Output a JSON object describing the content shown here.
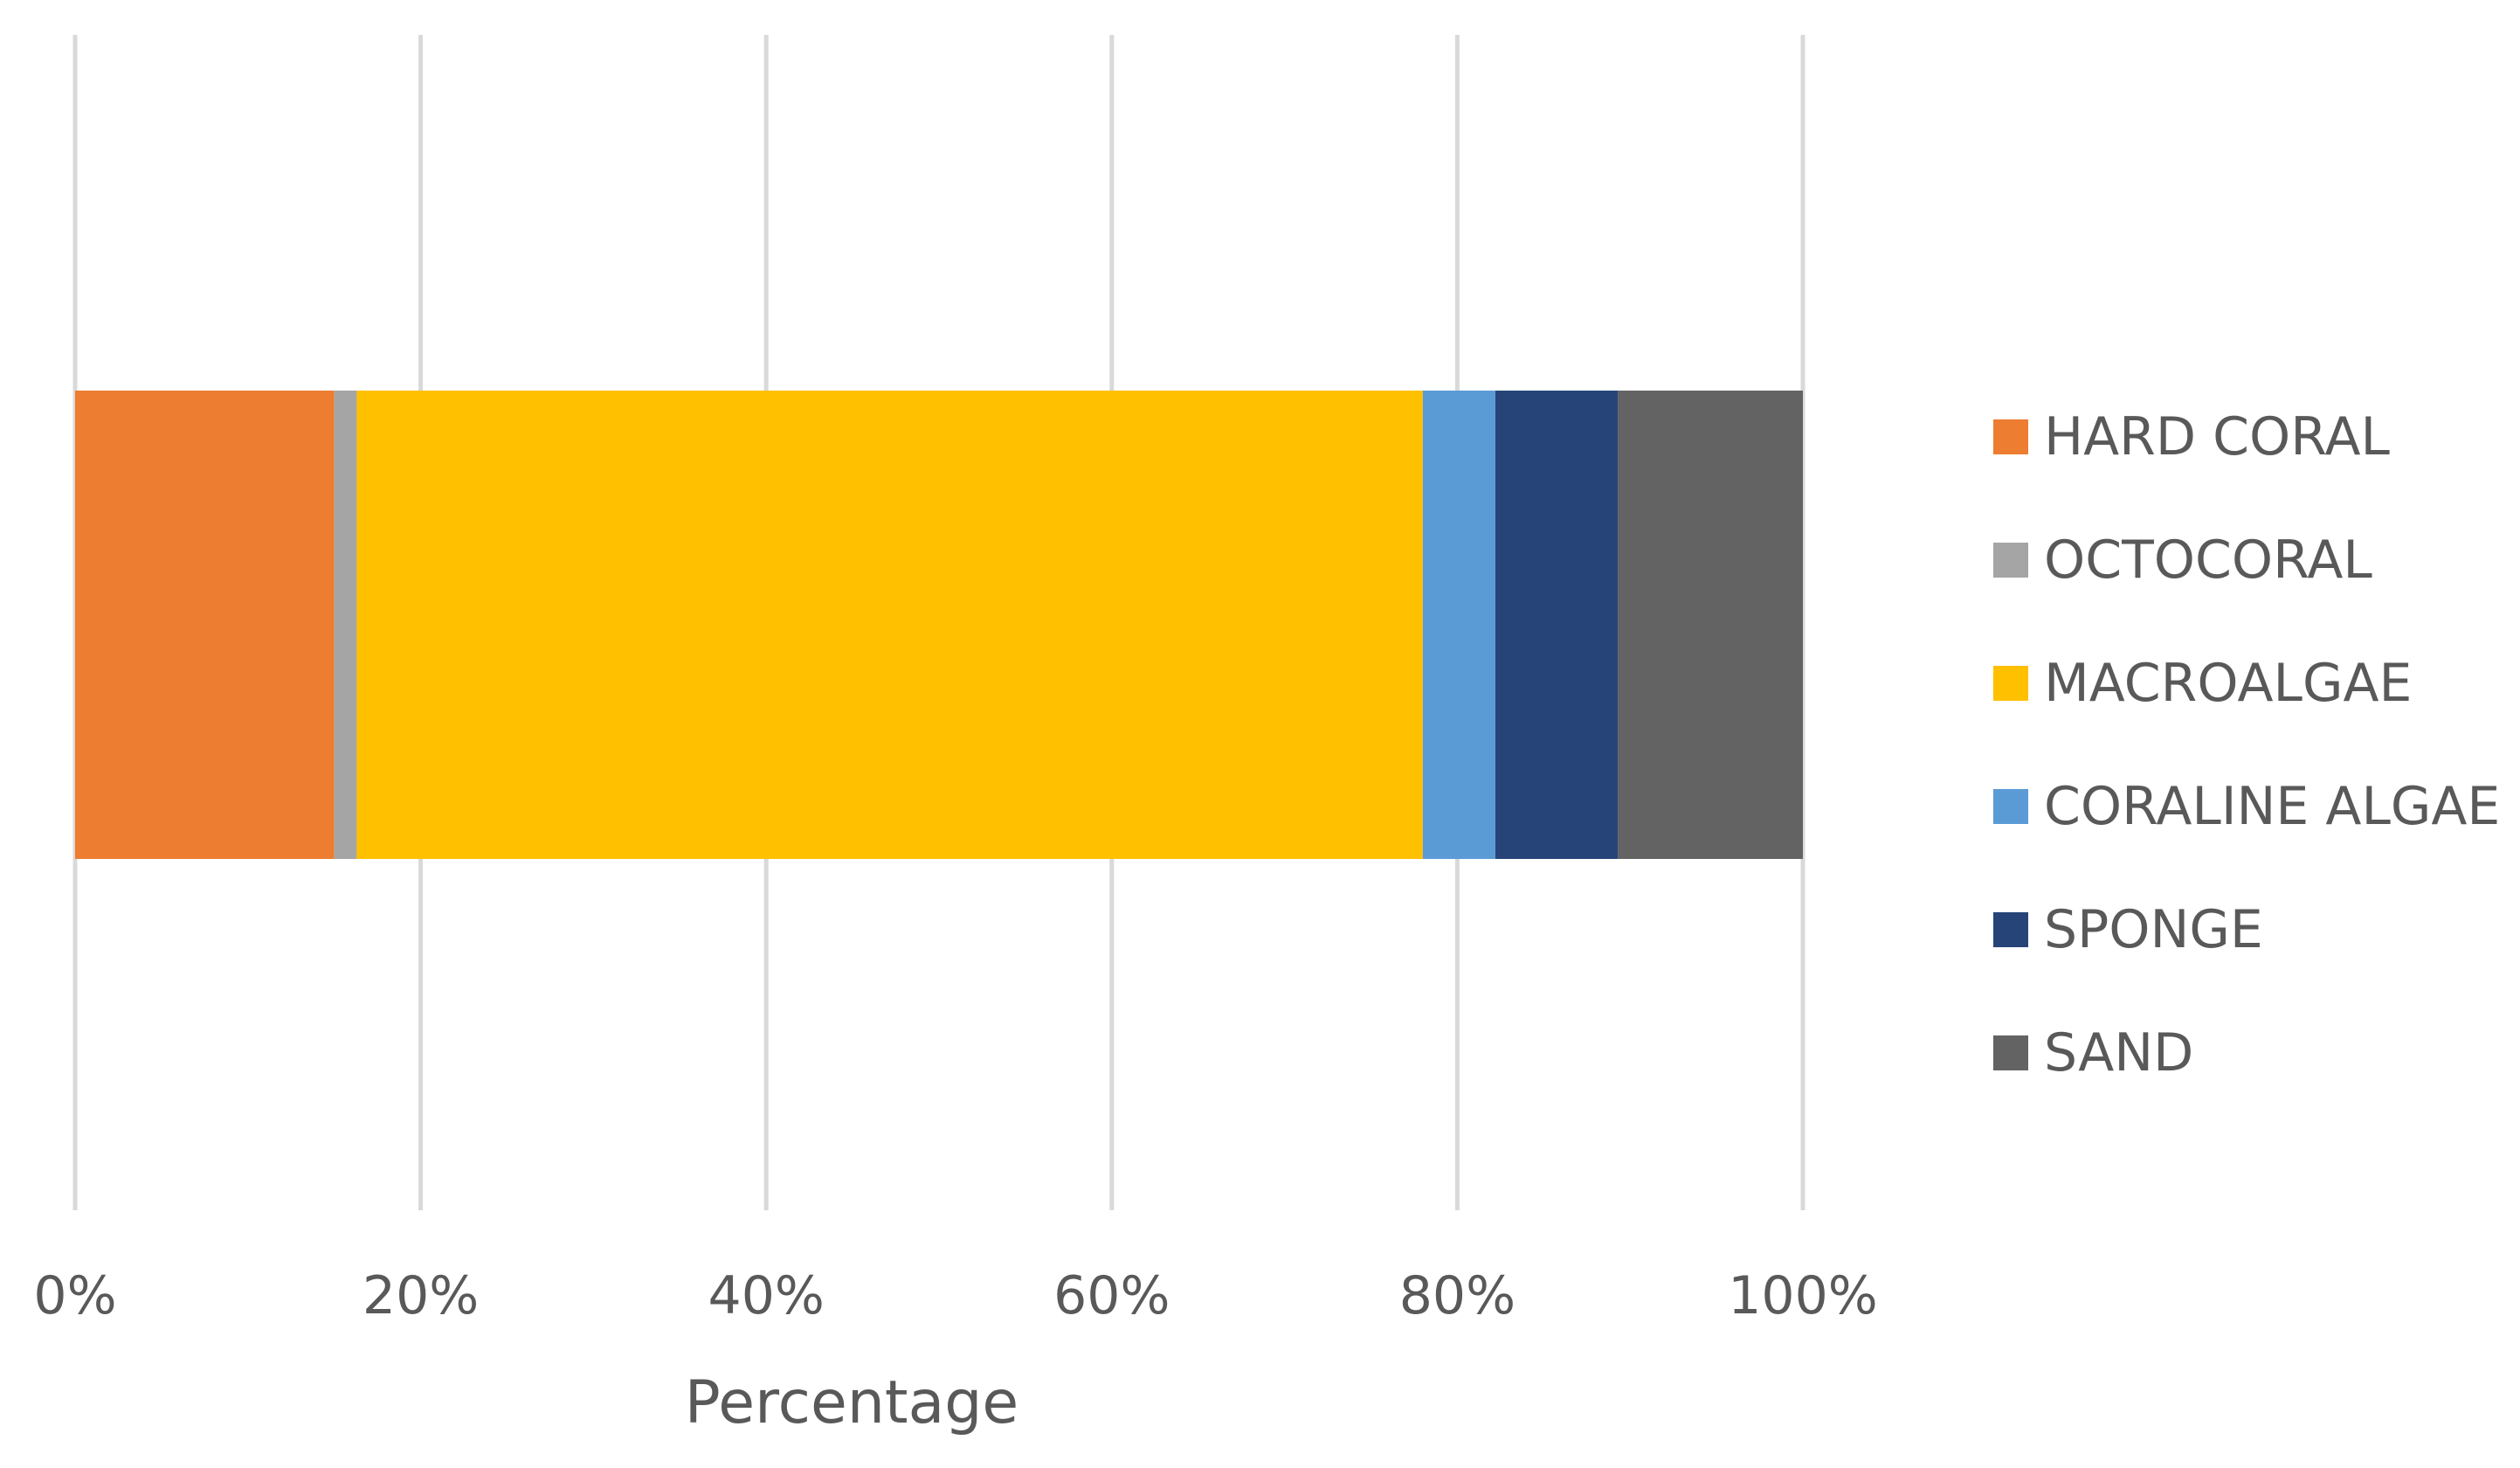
{
  "chart_data": {
    "type": "bar",
    "orientation": "horizontal",
    "stacked": "percent",
    "title": "",
    "xlabel": "Percentage",
    "ylabel": "",
    "xlim": [
      0,
      100
    ],
    "x_ticks": [
      "0%",
      "20%",
      "40%",
      "60%",
      "80%",
      "100%"
    ],
    "grid": "vertical",
    "legend_position": "right",
    "categories": [
      ""
    ],
    "series": [
      {
        "name": "HARD CORAL",
        "values": [
          15.0
        ],
        "color": "#ED7D31"
      },
      {
        "name": "OCTOCORAL",
        "values": [
          1.3
        ],
        "color": "#A5A5A5"
      },
      {
        "name": "MACROALGAE",
        "values": [
          61.7
        ],
        "color": "#FFC000"
      },
      {
        "name": "CORALINE ALGAE",
        "values": [
          4.2
        ],
        "color": "#5B9BD5"
      },
      {
        "name": "SPONGE",
        "values": [
          7.1
        ],
        "color": "#264478"
      },
      {
        "name": "SAND",
        "values": [
          10.7
        ],
        "color": "#636363"
      }
    ]
  },
  "colors": {
    "gridline": "#D9D9D9",
    "text": "#595959",
    "background": "#FFFFFF"
  }
}
